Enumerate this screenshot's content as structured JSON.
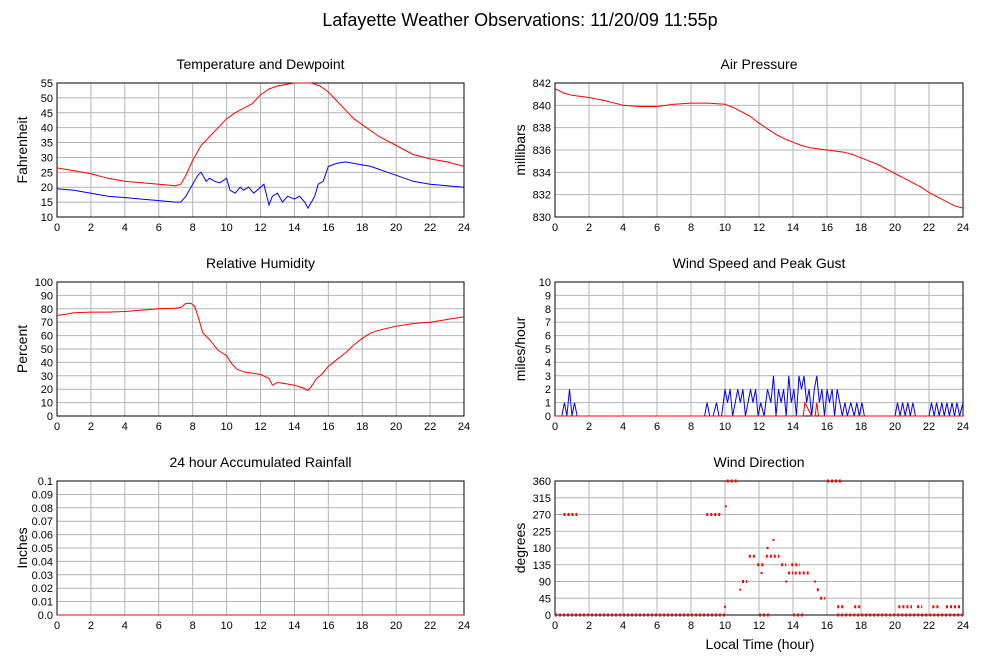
{
  "page": {
    "title": "Lafayette Weather Observations: 11/20/09 11:55p",
    "x_axis_label": "Local Time (hour)"
  },
  "chart_data": [
    {
      "id": "temp",
      "type": "line",
      "title": "Temperature and Dewpoint",
      "ylabel": "Fahrenheit",
      "xlim": [
        0,
        24
      ],
      "ylim": [
        10,
        55
      ],
      "xticks": [
        0,
        2,
        4,
        6,
        8,
        10,
        12,
        14,
        16,
        18,
        20,
        22,
        24
      ],
      "yticks": [
        10,
        15,
        20,
        25,
        30,
        35,
        40,
        45,
        50,
        55
      ],
      "grid": true,
      "series": [
        {
          "color": "#ff0000",
          "x": [
            0,
            1,
            2,
            3,
            4,
            5,
            6,
            7,
            7.3,
            7.6,
            8,
            8.5,
            9,
            9.5,
            10,
            10.5,
            11,
            11.5,
            12,
            12.5,
            13,
            13.5,
            14,
            14.5,
            15,
            15.5,
            16,
            16.5,
            17,
            17.5,
            18,
            19,
            20,
            21,
            22,
            23,
            24
          ],
          "y": [
            26.5,
            25.5,
            24.5,
            23,
            22,
            21.5,
            21,
            20.5,
            21,
            24,
            29,
            34,
            37,
            40,
            43,
            45,
            46.5,
            48,
            51,
            53,
            54,
            54.5,
            55,
            55,
            55,
            54,
            52,
            49,
            46,
            43,
            41,
            37,
            34,
            31,
            29.5,
            28.5,
            27
          ]
        },
        {
          "color": "#0000ff",
          "x": [
            0,
            1,
            2,
            3,
            4,
            5,
            6,
            7,
            7.3,
            7.6,
            8,
            8.3,
            8.5,
            8.8,
            9,
            9.3,
            9.6,
            10,
            10.2,
            10.5,
            10.8,
            11,
            11.3,
            11.6,
            12,
            12.2,
            12.5,
            12.7,
            13,
            13.3,
            13.6,
            14,
            14.3,
            14.6,
            14.8,
            15,
            15.2,
            15.4,
            15.7,
            16,
            16.5,
            17,
            17.5,
            18,
            18.5,
            19,
            20,
            21,
            22,
            23,
            24
          ],
          "y": [
            19.5,
            19,
            18,
            17,
            16.5,
            16,
            15.5,
            15,
            15,
            17,
            21,
            24,
            25,
            22,
            23,
            22,
            21.5,
            23,
            19,
            18,
            20,
            19,
            20,
            18,
            20,
            21,
            14,
            17,
            18,
            15,
            17,
            16,
            17,
            15,
            13,
            15,
            17,
            21,
            22,
            27,
            28,
            28.5,
            28,
            27.5,
            27,
            26,
            24,
            22,
            21,
            20.5,
            20
          ]
        }
      ]
    },
    {
      "id": "pressure",
      "type": "line",
      "title": "Air Pressure",
      "ylabel": "millibars",
      "xlim": [
        0,
        24
      ],
      "ylim": [
        830,
        842
      ],
      "xticks": [
        0,
        2,
        4,
        6,
        8,
        10,
        12,
        14,
        16,
        18,
        20,
        22,
        24
      ],
      "yticks": [
        830,
        832,
        834,
        836,
        838,
        840,
        842
      ],
      "grid": true,
      "series": [
        {
          "color": "#ff0000",
          "x": [
            0,
            0.5,
            1,
            2,
            3,
            4,
            5,
            6,
            7,
            8,
            9,
            10,
            10.5,
            11,
            11.5,
            12,
            12.5,
            13,
            13.5,
            14,
            14.5,
            15,
            15.5,
            16,
            16.5,
            17,
            17.5,
            18,
            18.5,
            19,
            19.5,
            20,
            20.5,
            21,
            21.5,
            22,
            22.5,
            23,
            23.5,
            24
          ],
          "y": [
            841.5,
            841.1,
            840.9,
            840.7,
            840.4,
            840,
            839.9,
            839.9,
            840.1,
            840.2,
            840.2,
            840.1,
            839.8,
            839.4,
            839,
            838.4,
            837.9,
            837.4,
            837,
            836.7,
            836.4,
            836.2,
            836.1,
            836,
            835.9,
            835.8,
            835.6,
            835.3,
            835,
            834.7,
            834.3,
            833.9,
            833.5,
            833.1,
            832.7,
            832.2,
            831.8,
            831.4,
            831,
            830.8
          ]
        }
      ]
    },
    {
      "id": "humidity",
      "type": "line",
      "title": "Relative Humidity",
      "ylabel": "Percent",
      "xlim": [
        0,
        24
      ],
      "ylim": [
        0,
        100
      ],
      "xticks": [
        0,
        2,
        4,
        6,
        8,
        10,
        12,
        14,
        16,
        18,
        20,
        22,
        24
      ],
      "yticks": [
        0,
        10,
        20,
        30,
        40,
        50,
        60,
        70,
        80,
        90,
        100
      ],
      "grid": true,
      "series": [
        {
          "color": "#ff0000",
          "x": [
            0,
            0.5,
            1,
            2,
            3,
            4,
            5,
            6,
            7,
            7.3,
            7.6,
            7.9,
            8.1,
            8.3,
            8.6,
            9,
            9.5,
            10,
            10.3,
            10.6,
            11,
            11.5,
            12,
            12.5,
            12.7,
            13,
            13.5,
            14,
            14.5,
            14.8,
            15,
            15.3,
            15.6,
            16,
            16.5,
            17,
            17.5,
            18,
            18.5,
            19,
            20,
            21,
            22,
            23,
            24
          ],
          "y": [
            75,
            76,
            77,
            77.5,
            77.5,
            78,
            79,
            80,
            80.5,
            81,
            84,
            84,
            82,
            75,
            62,
            57,
            49,
            45,
            39,
            35,
            33,
            32,
            31,
            28,
            23,
            25,
            24,
            23,
            21,
            19,
            22,
            28,
            31,
            37,
            42,
            47,
            53,
            58,
            62,
            64,
            67,
            69,
            70,
            72,
            74
          ]
        }
      ]
    },
    {
      "id": "wind",
      "type": "line",
      "title": "Wind Speed and Peak Gust",
      "ylabel": "miles/hour",
      "xlim": [
        0,
        24
      ],
      "ylim": [
        0,
        10
      ],
      "xticks": [
        0,
        2,
        4,
        6,
        8,
        10,
        12,
        14,
        16,
        18,
        20,
        22,
        24
      ],
      "yticks": [
        0,
        1,
        2,
        3,
        4,
        5,
        6,
        7,
        8,
        9,
        10
      ],
      "grid": true,
      "series": [
        {
          "color": "#0000ff",
          "x": [
            0,
            0.4,
            0.55,
            0.7,
            0.85,
            1,
            1.15,
            1.3,
            1.5,
            8.8,
            8.95,
            9.1,
            9.3,
            9.5,
            9.65,
            9.8,
            10,
            10.15,
            10.3,
            10.45,
            10.6,
            10.75,
            10.9,
            11.05,
            11.2,
            11.35,
            11.5,
            11.65,
            11.8,
            11.95,
            12.1,
            12.3,
            12.5,
            12.7,
            12.85,
            13,
            13.15,
            13.3,
            13.45,
            13.6,
            13.75,
            13.9,
            14.05,
            14.2,
            14.35,
            14.5,
            14.65,
            14.8,
            14.95,
            15.1,
            15.25,
            15.4,
            15.55,
            15.7,
            15.85,
            16,
            16.15,
            16.3,
            16.45,
            16.6,
            16.75,
            16.9,
            17.05,
            17.2,
            17.4,
            17.6,
            17.75,
            17.9,
            18.05,
            18.2,
            18.4,
            20,
            20.15,
            20.3,
            20.45,
            20.6,
            20.75,
            20.9,
            21.05,
            21.2,
            21.4,
            22,
            22.15,
            22.3,
            22.45,
            22.6,
            22.75,
            22.9,
            23.05,
            23.2,
            23.35,
            23.5,
            23.65,
            23.8,
            24
          ],
          "y": [
            0,
            0,
            1,
            0,
            2,
            0,
            1,
            0,
            0,
            0,
            1,
            0,
            0,
            1,
            0,
            0,
            2,
            1,
            2,
            0,
            1,
            2,
            1,
            2,
            0,
            1,
            2,
            1,
            2,
            0,
            1,
            0,
            2,
            1,
            3,
            0,
            2,
            1,
            2,
            0,
            3,
            1,
            2,
            0,
            3,
            2,
            3,
            1,
            2,
            0,
            2,
            3,
            1,
            2,
            0,
            2,
            1,
            2,
            0,
            2,
            1,
            0,
            1,
            0,
            1,
            0,
            1,
            0,
            1,
            0,
            0,
            0,
            1,
            0,
            1,
            0,
            1,
            0,
            1,
            0,
            0,
            0,
            1,
            0,
            1,
            0,
            1,
            0,
            1,
            0,
            1,
            0,
            1,
            0,
            1
          ]
        },
        {
          "color": "#ff0000",
          "x": [
            0,
            14.5,
            14.6,
            14.7,
            15.1,
            15.3,
            15.4,
            15.5,
            24
          ],
          "y": [
            0,
            0,
            0,
            1,
            0,
            0,
            1,
            0,
            0
          ]
        }
      ]
    },
    {
      "id": "rain",
      "type": "line",
      "title": "24 hour Accumulated Rainfall",
      "ylabel": "Inches",
      "xlim": [
        0,
        24
      ],
      "ylim": [
        0,
        0.1
      ],
      "xticks": [
        0,
        2,
        4,
        6,
        8,
        10,
        12,
        14,
        16,
        18,
        20,
        22,
        24
      ],
      "yticks": [
        0.0,
        0.01,
        0.02,
        0.03,
        0.04,
        0.05,
        0.06,
        0.07,
        0.08,
        0.09,
        0.1
      ],
      "ytick_labels": [
        "0.0",
        "0.01",
        "0.02",
        "0.03",
        "0.04",
        "0.05",
        "0.06",
        "0.07",
        "0.08",
        "0.09",
        "0.1"
      ],
      "grid": true,
      "series": [
        {
          "color": "#ff0000",
          "x": [
            0,
            24
          ],
          "y": [
            0,
            0
          ]
        }
      ]
    },
    {
      "id": "direction",
      "type": "scatter",
      "title": "Wind Direction",
      "ylabel": "degrees",
      "xlabel": "Local Time (hour)",
      "xlim": [
        0,
        24
      ],
      "ylim": [
        0,
        360
      ],
      "xticks": [
        0,
        2,
        4,
        6,
        8,
        10,
        12,
        14,
        16,
        18,
        20,
        22,
        24
      ],
      "yticks": [
        0,
        45,
        90,
        135,
        180,
        225,
        270,
        315,
        360
      ],
      "grid": true,
      "series": [
        {
          "color": "#ff0000",
          "segments": [
            {
              "y": 0,
              "x0": 0,
              "x1": 10
            },
            {
              "y": 270,
              "x0": 0.5,
              "x1": 1.3
            },
            {
              "y": 270,
              "x0": 8.9,
              "x1": 9.8
            },
            {
              "y": 360,
              "x0": 10.1,
              "x1": 10.7
            },
            {
              "y": 90,
              "x0": 11,
              "x1": 11.3
            },
            {
              "y": 158,
              "x0": 11.4,
              "x1": 11.8
            },
            {
              "y": 135,
              "x0": 11.9,
              "x1": 12.3
            },
            {
              "y": 158,
              "x0": 12.4,
              "x1": 13.2
            },
            {
              "y": 135,
              "x0": 13.3,
              "x1": 13.6
            },
            {
              "y": 113,
              "x0": 13.7,
              "x1": 14.0
            },
            {
              "y": 135,
              "x0": 13.9,
              "x1": 14.4
            },
            {
              "y": 113,
              "x0": 14.1,
              "x1": 15.0
            },
            {
              "y": 0,
              "x0": 12.0,
              "x1": 12.7
            },
            {
              "y": 0,
              "x0": 14.0,
              "x1": 14.6
            },
            {
              "y": 68,
              "x0": 15.4,
              "x1": 15.6
            },
            {
              "y": 45,
              "x0": 15.6,
              "x1": 15.9
            },
            {
              "y": 360,
              "x0": 16.0,
              "x1": 16.9
            },
            {
              "y": 22,
              "x0": 16.6,
              "x1": 17.0
            },
            {
              "y": 22,
              "x0": 17.6,
              "x1": 18.0
            },
            {
              "y": 0,
              "x0": 16.6,
              "x1": 24
            },
            {
              "y": 22,
              "x0": 20.2,
              "x1": 21.0
            },
            {
              "y": 22,
              "x0": 21.3,
              "x1": 21.6
            },
            {
              "y": 22,
              "x0": 22.2,
              "x1": 22.6
            },
            {
              "y": 22,
              "x0": 23.0,
              "x1": 23.9
            }
          ],
          "points": [
            [
              10,
              22
            ],
            [
              10.05,
              292
            ],
            [
              10.9,
              68
            ],
            [
              12.15,
              113
            ],
            [
              12.5,
              180
            ],
            [
              12.85,
              202
            ],
            [
              13.6,
              90
            ],
            [
              15.3,
              90
            ]
          ]
        }
      ]
    }
  ]
}
